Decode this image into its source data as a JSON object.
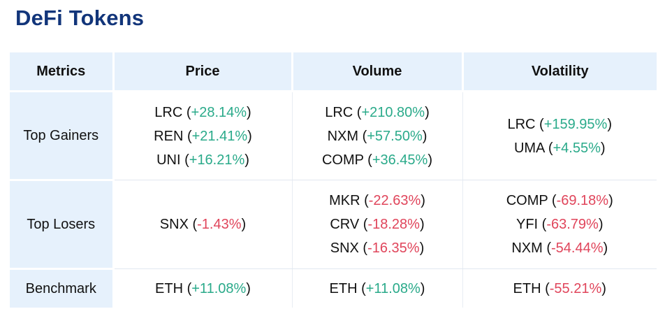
{
  "title": "DeFi Tokens",
  "colors": {
    "title": "#12357a",
    "header_bg": "#e6f1fc",
    "positive": "#2aaa8a",
    "negative": "#e0455b"
  },
  "headers": [
    "Metrics",
    "Price",
    "Volume",
    "Volatility"
  ],
  "rows": [
    {
      "label": "Top Gainers",
      "price": [
        {
          "token": "LRC",
          "change": "+28.14%"
        },
        {
          "token": "REN",
          "change": "+21.41%"
        },
        {
          "token": "UNI",
          "change": "+16.21%"
        }
      ],
      "volume": [
        {
          "token": "LRC",
          "change": "+210.80%"
        },
        {
          "token": "NXM",
          "change": "+57.50%"
        },
        {
          "token": "COMP",
          "change": "+36.45%"
        }
      ],
      "volatility": [
        {
          "token": "LRC",
          "change": "+159.95%"
        },
        {
          "token": "UMA",
          "change": "+4.55%"
        }
      ]
    },
    {
      "label": "Top Losers",
      "price": [
        {
          "token": "SNX",
          "change": "-1.43%"
        }
      ],
      "volume": [
        {
          "token": "MKR",
          "change": "-22.63%"
        },
        {
          "token": "CRV",
          "change": "-18.28%"
        },
        {
          "token": "SNX",
          "change": "-16.35%"
        }
      ],
      "volatility": [
        {
          "token": "COMP",
          "change": "-69.18%"
        },
        {
          "token": "YFI",
          "change": "-63.79%"
        },
        {
          "token": "NXM",
          "change": "-54.44%"
        }
      ]
    },
    {
      "label": "Benchmark",
      "price": [
        {
          "token": "ETH",
          "change": "+11.08%"
        }
      ],
      "volume": [
        {
          "token": "ETH",
          "change": "+11.08%"
        }
      ],
      "volatility": [
        {
          "token": "ETH",
          "change": "-55.21%"
        }
      ]
    }
  ]
}
